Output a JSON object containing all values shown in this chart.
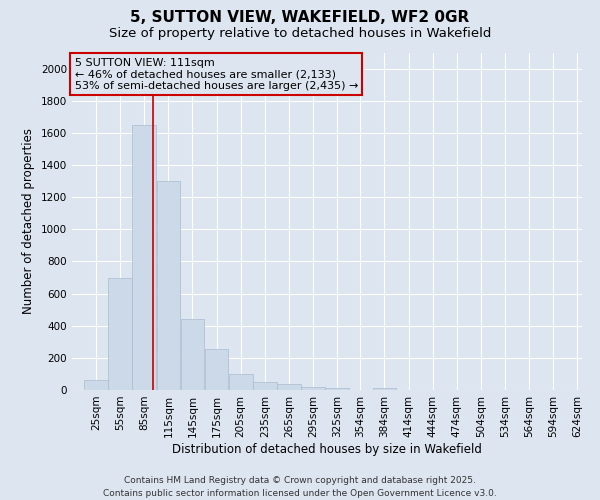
{
  "title": "5, SUTTON VIEW, WAKEFIELD, WF2 0GR",
  "subtitle": "Size of property relative to detached houses in Wakefield",
  "xlabel": "Distribution of detached houses by size in Wakefield",
  "ylabel": "Number of detached properties",
  "bar_color": "#ccd9e8",
  "bar_edge_color": "#aabcce",
  "background_color": "#dde6f0",
  "grid_color": "#ffffff",
  "annotation_box_color": "#cc0000",
  "annotation_line1": "5 SUTTON VIEW: 111sqm",
  "annotation_line2": "← 46% of detached houses are smaller (2,133)",
  "annotation_line3": "53% of semi-detached houses are larger (2,435) →",
  "vline_x": 111,
  "vline_color": "#cc0000",
  "categories": [
    "25sqm",
    "55sqm",
    "85sqm",
    "115sqm",
    "145sqm",
    "175sqm",
    "205sqm",
    "235sqm",
    "265sqm",
    "295sqm",
    "325sqm",
    "354sqm",
    "384sqm",
    "414sqm",
    "444sqm",
    "474sqm",
    "504sqm",
    "534sqm",
    "564sqm",
    "594sqm",
    "624sqm"
  ],
  "bin_lefts": [
    25,
    55,
    85,
    115,
    145,
    175,
    205,
    235,
    265,
    295,
    325,
    354,
    384,
    414,
    444,
    474,
    504,
    534,
    564,
    594,
    624
  ],
  "bin_width": 30,
  "values": [
    60,
    700,
    1650,
    1300,
    440,
    255,
    100,
    50,
    40,
    20,
    15,
    0,
    15,
    0,
    0,
    0,
    0,
    0,
    0,
    0,
    0
  ],
  "ylim": [
    0,
    2100
  ],
  "yticks": [
    0,
    200,
    400,
    600,
    800,
    1000,
    1200,
    1400,
    1600,
    1800,
    2000
  ],
  "xlim_left": 10,
  "xlim_right": 645,
  "footnote": "Contains HM Land Registry data © Crown copyright and database right 2025.\nContains public sector information licensed under the Open Government Licence v3.0.",
  "title_fontsize": 11,
  "subtitle_fontsize": 9.5,
  "ylabel_fontsize": 8.5,
  "xlabel_fontsize": 8.5,
  "tick_fontsize": 7.5,
  "annotation_fontsize": 8,
  "footnote_fontsize": 6.5
}
